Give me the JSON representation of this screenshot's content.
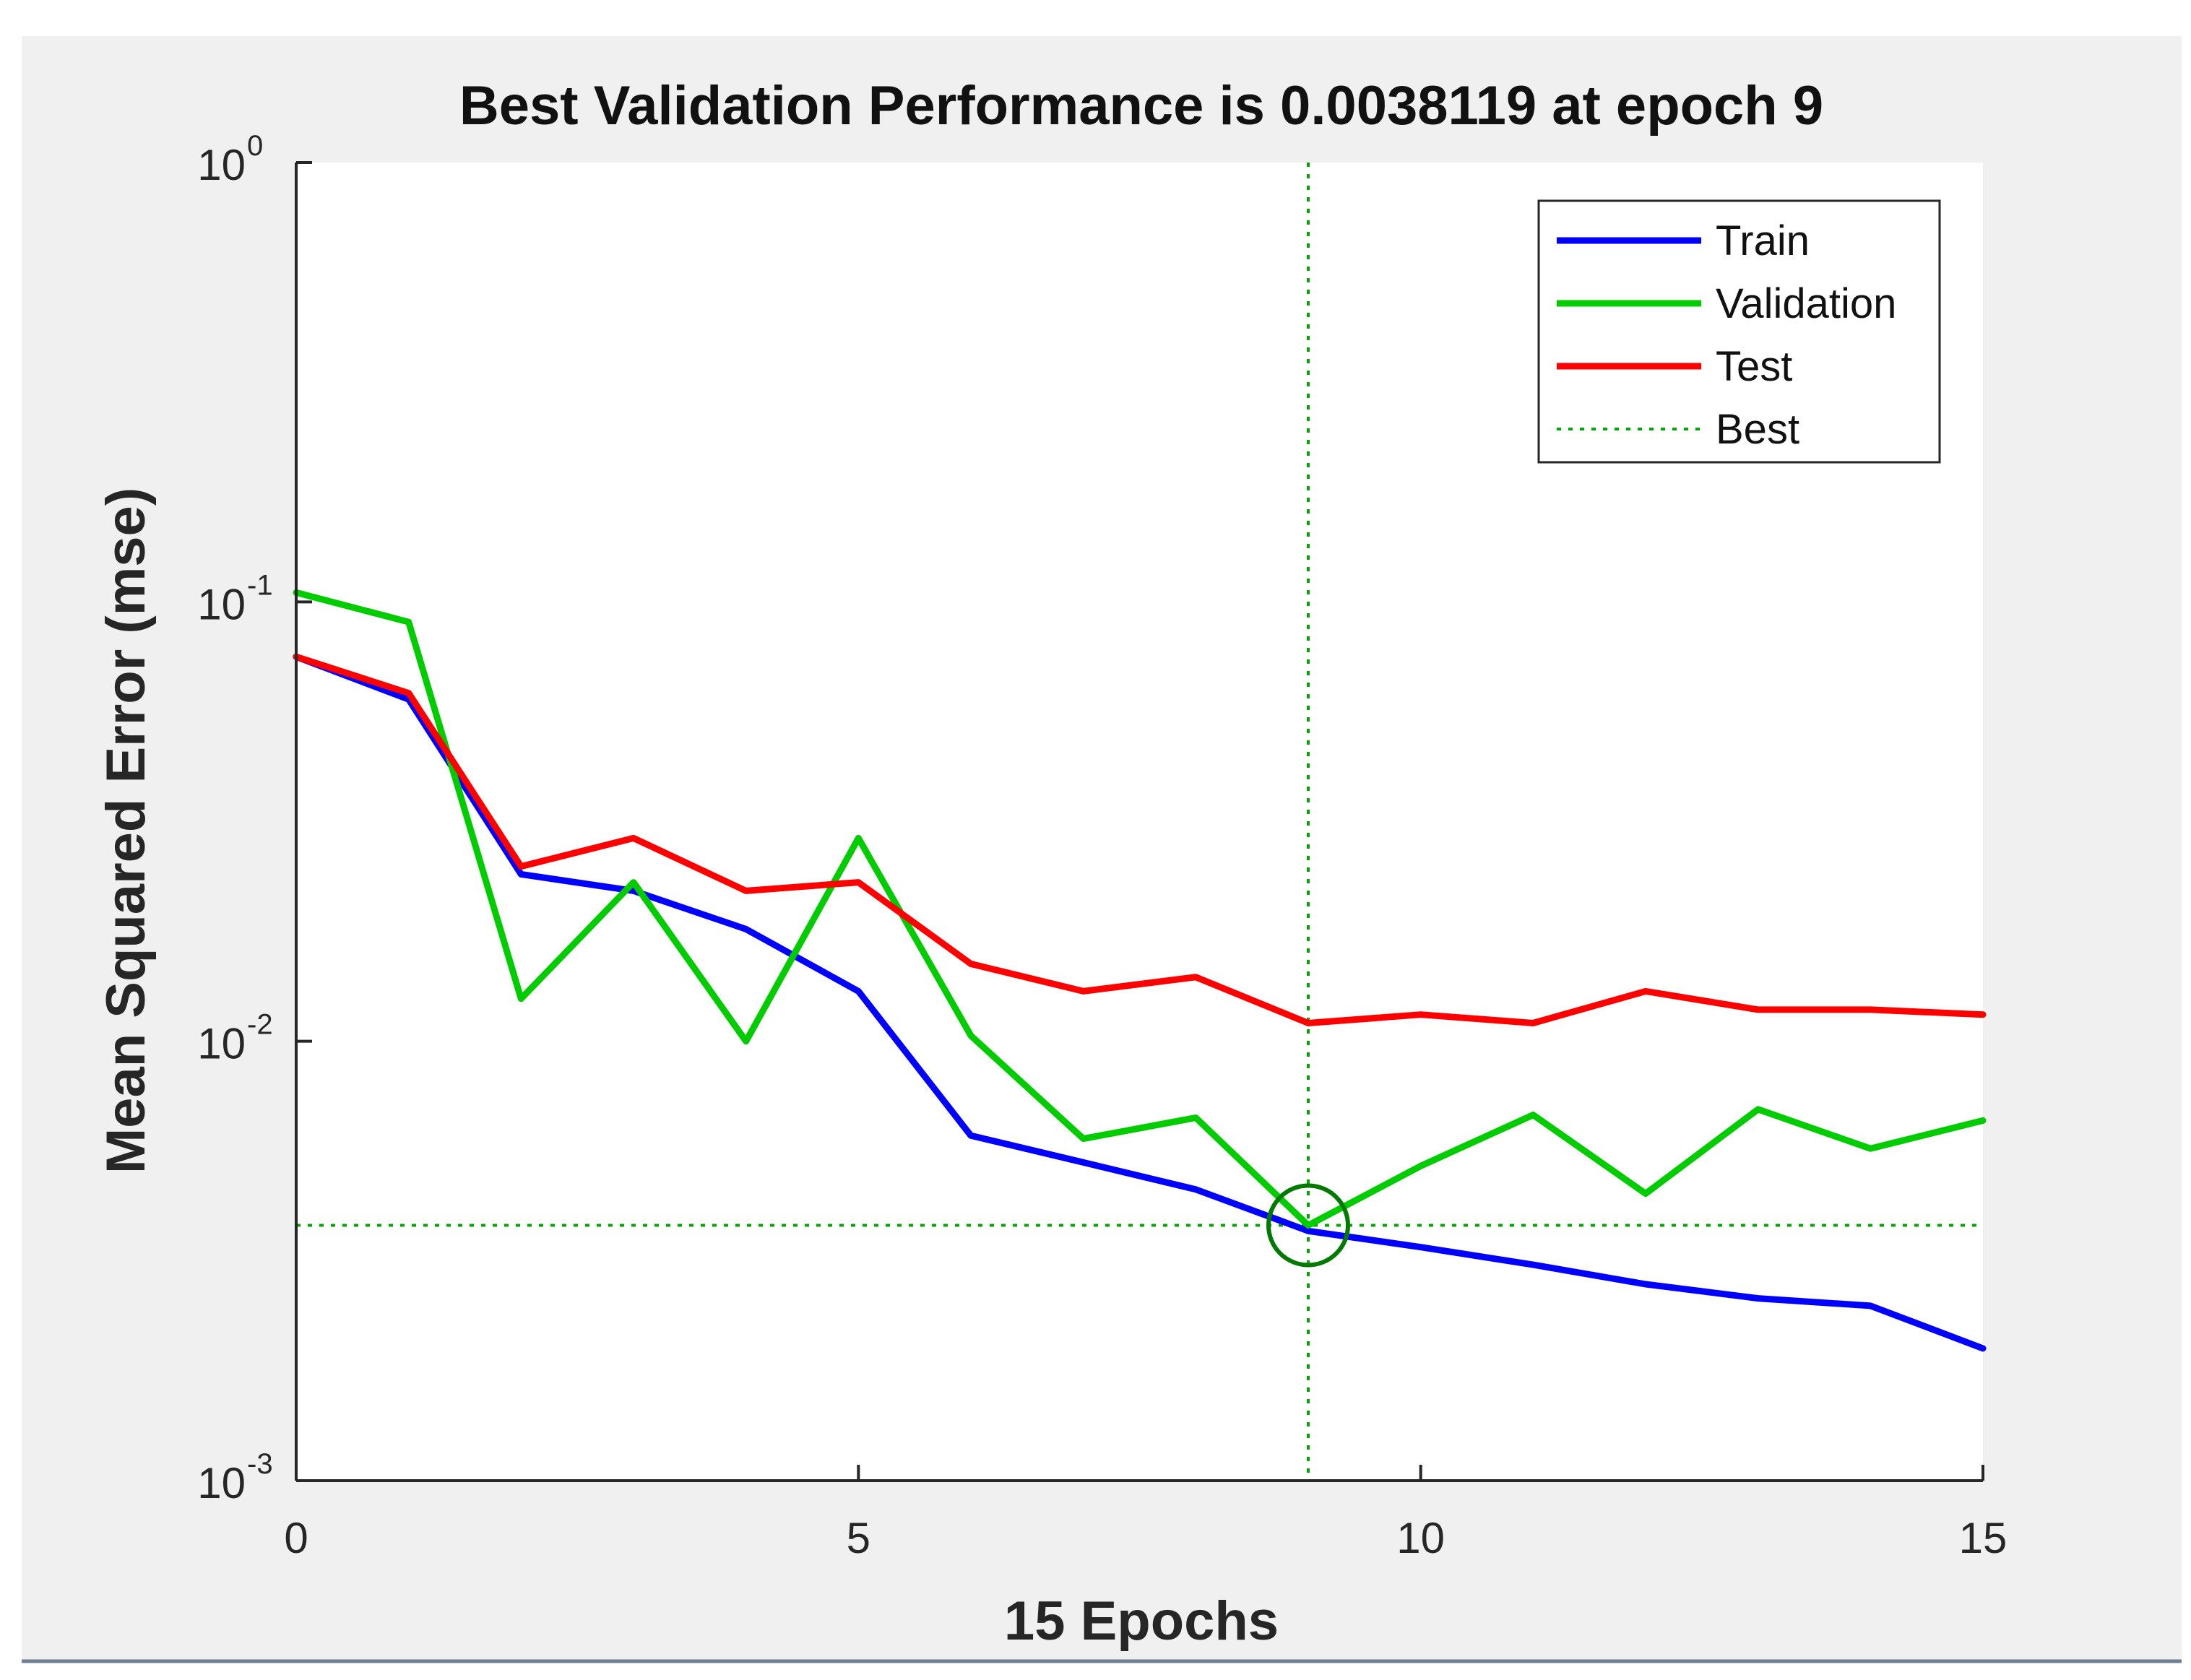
{
  "chart_data": {
    "type": "line",
    "title": "Best Validation Performance is 0.0038119 at epoch 9",
    "xlabel": "15 Epochs",
    "ylabel": "Mean Squared Error  (mse)",
    "xlim": [
      0,
      15
    ],
    "ylim": [
      0.001,
      1
    ],
    "yscale": "log",
    "grid": false,
    "legend_position": "top-right",
    "x_ticks": [
      {
        "value": 0,
        "label": "0"
      },
      {
        "value": 5,
        "label": "5"
      },
      {
        "value": 10,
        "label": "10"
      },
      {
        "value": 15,
        "label": "15"
      }
    ],
    "y_ticks": [
      {
        "value": 1,
        "base": "10",
        "exponent": "0"
      },
      {
        "value": 0.1,
        "base": "10",
        "exponent": "-1"
      },
      {
        "value": 0.01,
        "base": "10",
        "exponent": "-2"
      },
      {
        "value": 0.001,
        "base": "10",
        "exponent": "-3"
      }
    ],
    "x": [
      0,
      1,
      2,
      3,
      4,
      5,
      6,
      7,
      8,
      9,
      10,
      11,
      12,
      13,
      14,
      15
    ],
    "series": [
      {
        "name": "Train",
        "color": "#0000ff",
        "values": [
          0.075,
          0.06,
          0.024,
          0.022,
          0.018,
          0.013,
          0.0061,
          0.0053,
          0.0046,
          0.0037,
          0.0034,
          0.0031,
          0.0028,
          0.0026,
          0.0025,
          0.002
        ]
      },
      {
        "name": "Validation",
        "color": "#00cc00",
        "values": [
          0.105,
          0.09,
          0.0125,
          0.023,
          0.01,
          0.029,
          0.0103,
          0.006,
          0.0067,
          0.0038119,
          0.0052,
          0.0068,
          0.0045,
          0.007,
          0.0057,
          0.0066
        ]
      },
      {
        "name": "Test",
        "color": "#ff0000",
        "values": [
          0.075,
          0.062,
          0.025,
          0.029,
          0.022,
          0.023,
          0.015,
          0.013,
          0.014,
          0.011,
          0.0115,
          0.011,
          0.013,
          0.0118,
          0.0118,
          0.0115
        ]
      }
    ],
    "best": {
      "name": "Best",
      "color": "#00aa00",
      "epoch": 9,
      "value": 0.0038119
    }
  }
}
